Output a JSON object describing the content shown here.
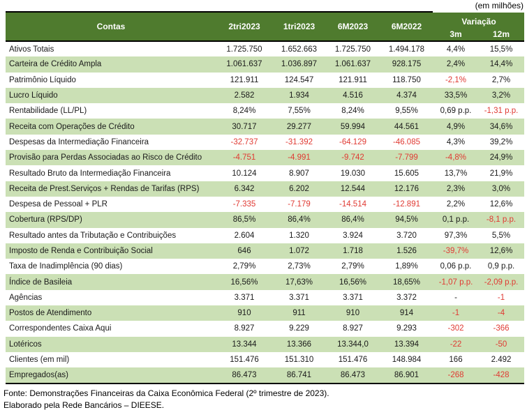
{
  "unit_note": "(em milhões)",
  "colors": {
    "header_bg": "#4f7b2e",
    "stripe_bg": "#cbe0b5",
    "negative_text": "#e03a33",
    "header_text": "#ffffff"
  },
  "table": {
    "header": {
      "contas": "Contas",
      "periods": [
        "2tri2023",
        "1tri2023",
        "6M2023",
        "6M2022"
      ],
      "variacao": "Variação",
      "variacao_sub": [
        "3m",
        "12m"
      ]
    },
    "rows": [
      {
        "label": "Ativos Totais",
        "values": [
          "1.725.750",
          "1.652.663",
          "1.725.750",
          "1.494.178",
          "4,4%",
          "15,5%"
        ],
        "red": [
          0,
          0,
          0,
          0,
          0,
          0
        ]
      },
      {
        "label": "Carteira de Crédito Ampla",
        "values": [
          "1.061.637",
          "1.036.897",
          "1.061.637",
          "928.175",
          "2,4%",
          "14,4%"
        ],
        "red": [
          0,
          0,
          0,
          0,
          0,
          0
        ]
      },
      {
        "label": "Patrimônio Líquido",
        "values": [
          "121.911",
          "124.547",
          "121.911",
          "118.750",
          "-2,1%",
          "2,7%"
        ],
        "red": [
          0,
          0,
          0,
          0,
          1,
          0
        ]
      },
      {
        "label": "Lucro Líquido",
        "values": [
          "2.582",
          "1.934",
          "4.516",
          "4.374",
          "33,5%",
          "3,2%"
        ],
        "red": [
          0,
          0,
          0,
          0,
          0,
          0
        ]
      },
      {
        "label": "Rentabilidade (LL/PL)",
        "values": [
          "8,24%",
          "7,55%",
          "8,24%",
          "9,55%",
          "0,69 p.p.",
          "-1,31 p.p."
        ],
        "red": [
          0,
          0,
          0,
          0,
          0,
          1
        ]
      },
      {
        "label": "Receita com Operações de Crédito",
        "values": [
          "30.717",
          "29.277",
          "59.994",
          "44.561",
          "4,9%",
          "34,6%"
        ],
        "red": [
          0,
          0,
          0,
          0,
          0,
          0
        ]
      },
      {
        "label": "Despesas da Intermediação Financeira",
        "values": [
          "-32.737",
          "-31.392",
          "-64.129",
          "-46.085",
          "4,3%",
          "39,2%"
        ],
        "red": [
          1,
          1,
          1,
          1,
          0,
          0
        ]
      },
      {
        "label": "Provisão para Perdas Associadas ao Risco de Crédito",
        "values": [
          "-4.751",
          "-4.991",
          "-9.742",
          "-7.799",
          "-4,8%",
          "24,9%"
        ],
        "red": [
          1,
          1,
          1,
          1,
          1,
          0
        ]
      },
      {
        "label": "Resultado Bruto da Intermediação Financeira",
        "values": [
          "10.124",
          "8.907",
          "19.030",
          "15.605",
          "13,7%",
          "21,9%"
        ],
        "red": [
          0,
          0,
          0,
          0,
          0,
          0
        ]
      },
      {
        "label": "Receita de Prest.Serviços + Rendas de Tarifas (RPS)",
        "values": [
          "6.342",
          "6.202",
          "12.544",
          "12.176",
          "2,3%",
          "3,0%"
        ],
        "red": [
          0,
          0,
          0,
          0,
          0,
          0
        ]
      },
      {
        "label": "Despesa de Pessoal + PLR",
        "values": [
          "-7.335",
          "-7.179",
          "-14.514",
          "-12.891",
          "2,2%",
          "12,6%"
        ],
        "red": [
          1,
          1,
          1,
          1,
          0,
          0
        ]
      },
      {
        "label": "Cobertura (RPS/DP)",
        "values": [
          "86,5%",
          "86,4%",
          "86,4%",
          "94,5%",
          "0,1 p.p.",
          "-8,1 p.p."
        ],
        "red": [
          0,
          0,
          0,
          0,
          0,
          1
        ]
      },
      {
        "label": "Resultado antes da Tributação e Contribuições",
        "values": [
          "2.604",
          "1.320",
          "3.924",
          "3.720",
          "97,3%",
          "5,5%"
        ],
        "red": [
          0,
          0,
          0,
          0,
          0,
          0
        ]
      },
      {
        "label": "Imposto de Renda e Contribuição Social",
        "values": [
          "646",
          "1.072",
          "1.718",
          "1.526",
          "-39,7%",
          "12,6%"
        ],
        "red": [
          0,
          0,
          0,
          0,
          1,
          0
        ]
      },
      {
        "label": "Taxa de Inadimplência (90 dias)",
        "values": [
          "2,79%",
          "2,73%",
          "2,79%",
          "1,89%",
          "0,06 p.p.",
          "0,9 p.p."
        ],
        "red": [
          0,
          0,
          0,
          0,
          0,
          0
        ]
      },
      {
        "label": "Índice de Basileia",
        "values": [
          "16,56%",
          "17,63%",
          "16,56%",
          "18,65%",
          "-1,07 p.p.",
          "-2,09 p.p."
        ],
        "red": [
          0,
          0,
          0,
          0,
          1,
          1
        ]
      },
      {
        "label": "Agências",
        "values": [
          "3.371",
          "3.371",
          "3.371",
          "3.372",
          "-",
          "-1"
        ],
        "red": [
          0,
          0,
          0,
          0,
          0,
          1
        ]
      },
      {
        "label": "Postos de Atendimento",
        "values": [
          "910",
          "911",
          "910",
          "914",
          "-1",
          "-4"
        ],
        "red": [
          0,
          0,
          0,
          0,
          1,
          1
        ]
      },
      {
        "label": "Correspondentes Caixa Aqui",
        "values": [
          "8.927",
          "9.229",
          "8.927",
          "9.293",
          "-302",
          "-366"
        ],
        "red": [
          0,
          0,
          0,
          0,
          1,
          1
        ]
      },
      {
        "label": "Lotéricos",
        "values": [
          "13.344",
          "13.366",
          "13.344,0",
          "13.394",
          "-22",
          "-50"
        ],
        "red": [
          0,
          0,
          0,
          0,
          1,
          1
        ]
      },
      {
        "label": "Clientes (em mil)",
        "values": [
          "151.476",
          "151.310",
          "151.476",
          "148.984",
          "166",
          "2.492"
        ],
        "red": [
          0,
          0,
          0,
          0,
          0,
          0
        ]
      },
      {
        "label": "Empregados(as)",
        "values": [
          "86.473",
          "86.741",
          "86.473",
          "86.901",
          "-268",
          "-428"
        ],
        "red": [
          0,
          0,
          0,
          0,
          1,
          1
        ]
      }
    ]
  },
  "footer": {
    "source": "Fonte: Demonstrações Financeiras da Caixa Econômica Federal (2º trimestre de 2023).",
    "elaboration": "Elaborado pela Rede Bancários – DIEESE."
  }
}
